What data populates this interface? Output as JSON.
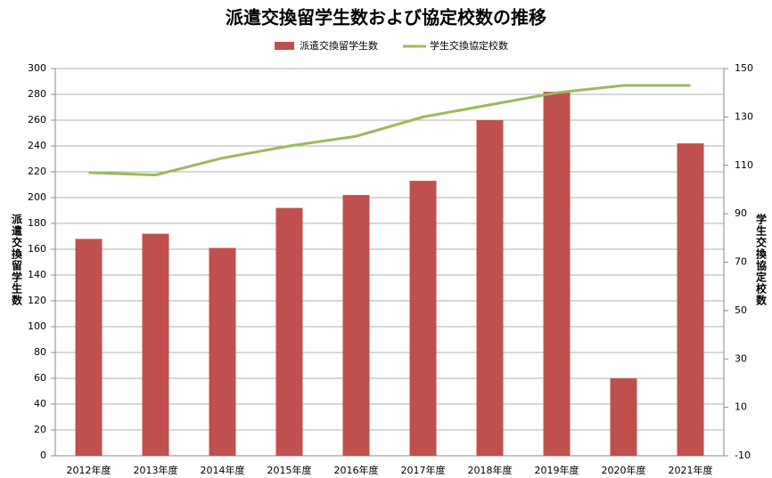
{
  "chart_data": {
    "type": "bar",
    "title": "派遣交換留学生数および協定校数の推移",
    "categories": [
      "2012年度",
      "2013年度",
      "2014年度",
      "2015年度",
      "2016年度",
      "2017年度",
      "2018年度",
      "2019年度",
      "2020年度",
      "2021年度"
    ],
    "series": [
      {
        "name": "派遣交換留学生数",
        "type": "bar",
        "color": "#c0504d",
        "values": [
          168,
          172,
          161,
          192,
          202,
          213,
          260,
          282,
          60,
          242
        ]
      },
      {
        "name": "学生交換協定校数",
        "type": "line",
        "axis": "y2",
        "color": "#9bbb59",
        "values": [
          107,
          106,
          113,
          118,
          122,
          130,
          135,
          140,
          143,
          143
        ]
      }
    ],
    "y_label": "派遣交換留学生数",
    "y2_label": "学生交換協定校数",
    "ylim": [
      0,
      300
    ],
    "yticks": [
      0,
      20,
      40,
      60,
      80,
      100,
      120,
      140,
      160,
      180,
      200,
      220,
      240,
      260,
      280,
      300
    ],
    "y2lim": [
      -10,
      150
    ],
    "y2ticks": [
      -10,
      10,
      30,
      50,
      70,
      90,
      110,
      130,
      150
    ],
    "grid": true,
    "legend": "top"
  }
}
